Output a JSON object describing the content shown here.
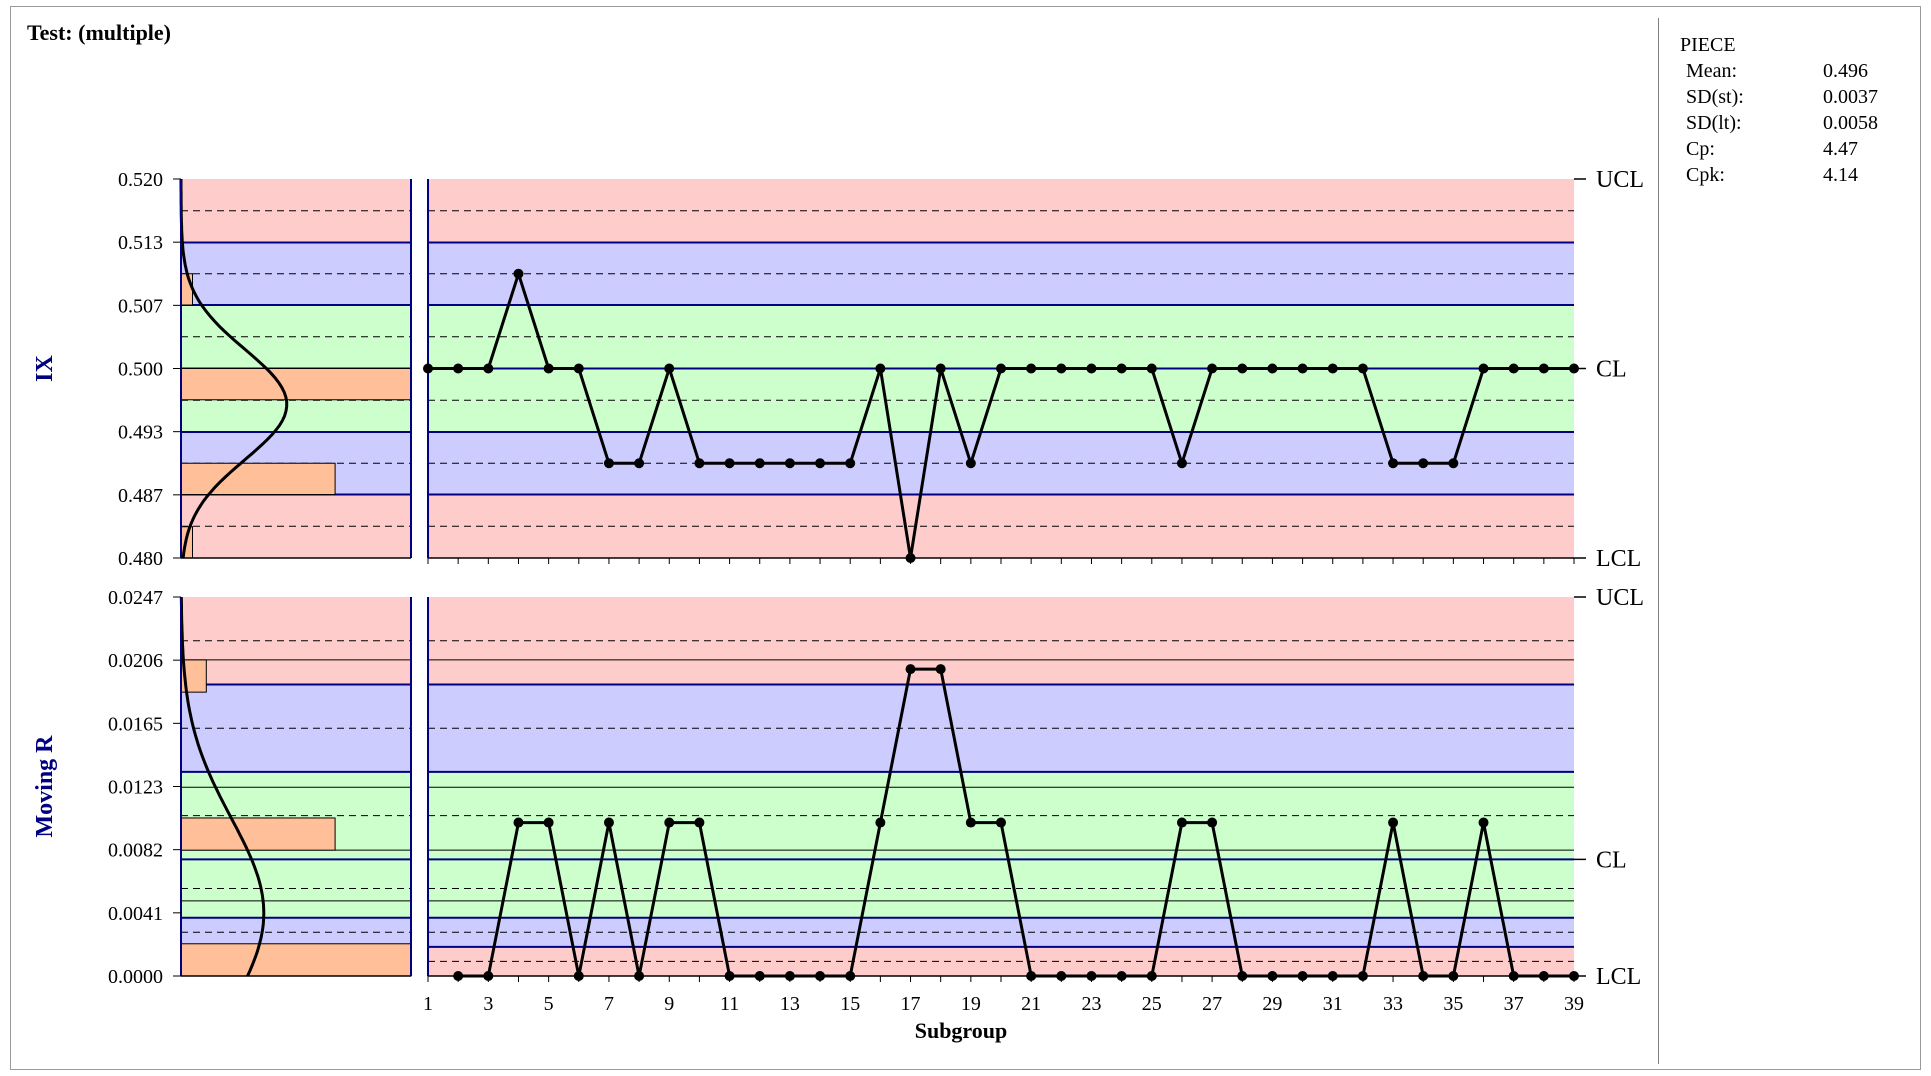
{
  "title": "Test: (multiple)",
  "stats": {
    "header": "PIECE",
    "rows": [
      {
        "label": "Mean:",
        "value": "0.496"
      },
      {
        "label": "SD(st):",
        "value": "0.0037"
      },
      {
        "label": "SD(lt):",
        "value": "0.0058"
      },
      {
        "label": "Cp:",
        "value": "4.47"
      },
      {
        "label": "Cpk:",
        "value": "4.14"
      }
    ]
  },
  "colors": {
    "zone_a": "#ffcccc",
    "zone_b": "#ccccff",
    "zone_c": "#ccffcc",
    "histogram_bar": "#ffbf99",
    "axis_title": "#000080",
    "zone_line": "#000080"
  },
  "chart_data": [
    {
      "type": "line",
      "ylabel": "IX",
      "ylim": [
        0.48,
        0.52
      ],
      "y_ticks": [
        "0.520",
        "0.513",
        "0.507",
        "0.500",
        "0.493",
        "0.487",
        "0.480"
      ],
      "limit_labels": {
        "ucl": "UCL",
        "cl": "CL",
        "lcl": "LCL"
      },
      "limits": {
        "ucl": 0.52,
        "cl": 0.5,
        "lcl": 0.48
      },
      "zones": [
        0.52,
        0.5133,
        0.5067,
        0.5,
        0.4933,
        0.4867,
        0.48
      ],
      "x": [
        1,
        2,
        3,
        4,
        5,
        6,
        7,
        8,
        9,
        10,
        11,
        12,
        13,
        14,
        15,
        16,
        17,
        18,
        19,
        20,
        21,
        22,
        23,
        24,
        25,
        26,
        27,
        28,
        29,
        30,
        31,
        32,
        33,
        34,
        35,
        36,
        37,
        38,
        39
      ],
      "values": [
        0.5,
        0.5,
        0.5,
        0.51,
        0.5,
        0.5,
        0.49,
        0.49,
        0.5,
        0.49,
        0.49,
        0.49,
        0.49,
        0.49,
        0.49,
        0.5,
        0.48,
        0.5,
        0.49,
        0.5,
        0.5,
        0.5,
        0.5,
        0.5,
        0.5,
        0.49,
        0.5,
        0.5,
        0.5,
        0.5,
        0.5,
        0.5,
        0.49,
        0.49,
        0.49,
        0.5,
        0.5,
        0.5,
        0.5
      ],
      "histogram": [
        {
          "from": 0.5067,
          "to": 0.51,
          "level": 0.05
        },
        {
          "from": 0.4967,
          "to": 0.5,
          "level": 1.0
        },
        {
          "from": 0.4867,
          "to": 0.49,
          "level": 0.67
        },
        {
          "from": 0.48,
          "to": 0.4833,
          "level": 0.05
        }
      ],
      "curve": {
        "mean": 0.4962,
        "sd": 0.0058,
        "peak": 0.46
      }
    },
    {
      "type": "line",
      "ylabel": "Moving R",
      "ylim": [
        0,
        0.0247
      ],
      "y_ticks": [
        "0.0247",
        "0.0206",
        "0.0165",
        "0.0123",
        "0.0082",
        "0.0041",
        "0.0000"
      ],
      "limit_labels": {
        "ucl": "UCL",
        "cl": "CL",
        "lcl": "LCL"
      },
      "limits": {
        "ucl": 0.0247,
        "cl": 0.0076,
        "lcl": 0
      },
      "zones": [
        0.0247,
        0.019,
        0.0133,
        0.0076,
        0.0038,
        0.0019,
        0
      ],
      "solid_lines": [
        0.0206,
        0.0123,
        0.0082,
        0.0049
      ],
      "xlabel": "Subgroup",
      "x": [
        2,
        3,
        4,
        5,
        6,
        7,
        8,
        9,
        10,
        11,
        12,
        13,
        14,
        15,
        16,
        17,
        18,
        19,
        20,
        21,
        22,
        23,
        24,
        25,
        26,
        27,
        28,
        29,
        30,
        31,
        32,
        33,
        34,
        35,
        36,
        37,
        38,
        39
      ],
      "values": [
        0,
        0,
        0.01,
        0.01,
        0,
        0.01,
        0,
        0.01,
        0.01,
        0,
        0,
        0,
        0,
        0,
        0.01,
        0.02,
        0.02,
        0.01,
        0.01,
        0,
        0,
        0,
        0,
        0,
        0.01,
        0.01,
        0,
        0,
        0,
        0,
        0,
        0.01,
        0,
        0,
        0.01,
        0,
        0,
        0
      ],
      "x_ticks": [
        "1",
        "3",
        "5",
        "7",
        "9",
        "11",
        "13",
        "15",
        "17",
        "19",
        "21",
        "23",
        "25",
        "27",
        "29",
        "31",
        "33",
        "35",
        "37",
        "39"
      ],
      "histogram": [
        {
          "from": 0.0185,
          "to": 0.0206,
          "level": 0.11
        },
        {
          "from": 0.0082,
          "to": 0.0103,
          "level": 0.67
        },
        {
          "from": 0,
          "to": 0.0021,
          "level": 1.0
        }
      ],
      "curve": {
        "mean": 0.0041,
        "sd": 0.0062,
        "peak": 0.36
      }
    }
  ]
}
